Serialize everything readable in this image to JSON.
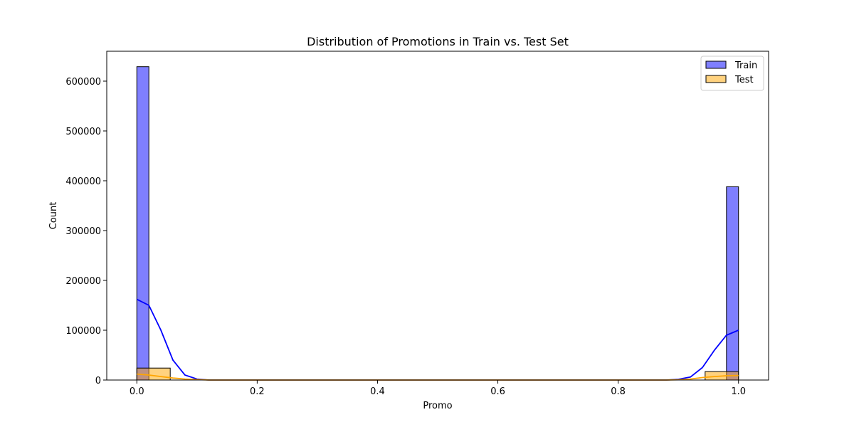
{
  "chart_data": {
    "type": "bar",
    "title": "Distribution of Promotions in Train vs. Test Set",
    "xlabel": "Promo",
    "ylabel": "Count",
    "xlim": [
      -0.05,
      1.05
    ],
    "ylim": [
      0,
      660000
    ],
    "x_ticks": [
      0.0,
      0.2,
      0.4,
      0.6,
      0.8,
      1.0
    ],
    "x_tick_labels": [
      "0.0",
      "0.2",
      "0.4",
      "0.6",
      "0.8",
      "1.0"
    ],
    "y_ticks": [
      0,
      100000,
      200000,
      300000,
      400000,
      500000,
      600000
    ],
    "y_tick_labels": [
      "0",
      "100000",
      "200000",
      "300000",
      "400000",
      "500000",
      "600000"
    ],
    "grid": false,
    "legend": {
      "placement": "top-right",
      "entries": [
        "Train",
        "Test"
      ]
    },
    "series": [
      {
        "name": "Train",
        "color": "#0000ff",
        "fill_opacity": 0.5,
        "kde_color": "#0000ff",
        "bins": [
          {
            "x0": 0.0,
            "x1": 0.02,
            "count": 629000
          },
          {
            "x0": 0.98,
            "x1": 1.0,
            "count": 388000
          }
        ],
        "kde": [
          [
            0.0,
            162000
          ],
          [
            0.02,
            150000
          ],
          [
            0.04,
            100000
          ],
          [
            0.06,
            40000
          ],
          [
            0.08,
            10000
          ],
          [
            0.1,
            2000
          ],
          [
            0.12,
            0
          ],
          [
            0.88,
            0
          ],
          [
            0.9,
            1500
          ],
          [
            0.92,
            6000
          ],
          [
            0.94,
            25000
          ],
          [
            0.96,
            60000
          ],
          [
            0.98,
            90000
          ],
          [
            1.0,
            100000
          ]
        ]
      },
      {
        "name": "Test",
        "color": "#ffa500",
        "fill_opacity": 0.5,
        "kde_color": "#ffa500",
        "bins": [
          {
            "x0": 0.0,
            "x1": 0.0555,
            "count": 24000
          },
          {
            "x0": 0.9445,
            "x1": 1.0,
            "count": 17000
          }
        ],
        "kde": [
          [
            0.0,
            12000
          ],
          [
            0.02,
            10000
          ],
          [
            0.04,
            7000
          ],
          [
            0.06,
            4000
          ],
          [
            0.08,
            2000
          ],
          [
            0.1,
            800
          ],
          [
            0.12,
            0
          ],
          [
            0.88,
            0
          ],
          [
            0.9,
            500
          ],
          [
            0.92,
            2000
          ],
          [
            0.94,
            5000
          ],
          [
            0.96,
            7000
          ],
          [
            0.98,
            8500
          ],
          [
            1.0,
            9000
          ]
        ]
      }
    ]
  }
}
